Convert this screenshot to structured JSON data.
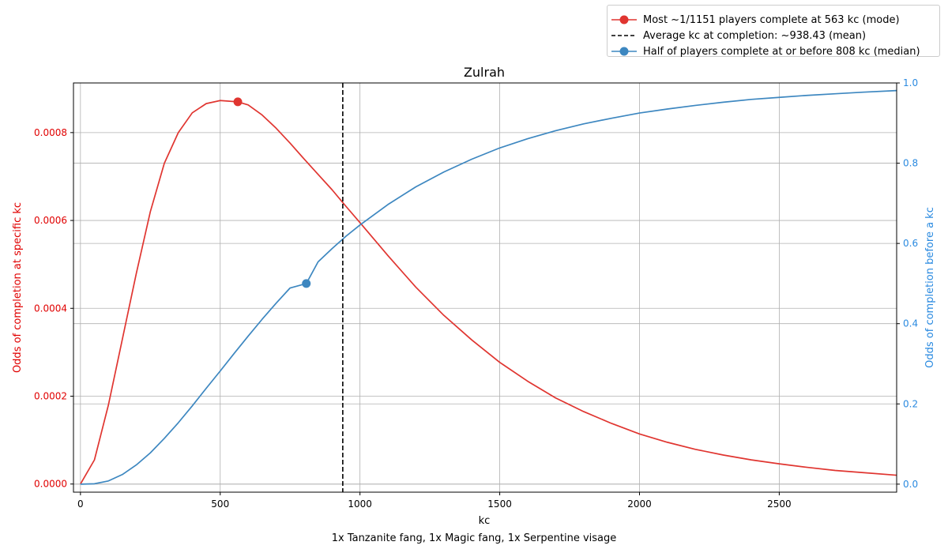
{
  "chart_data": {
    "type": "line",
    "title": "Zulrah",
    "xlabel": "kc",
    "caption": "1x Tanzanite fang, 1x Magic fang, 1x Serpentine visage",
    "x_range": [
      -25,
      2920
    ],
    "x_ticks": [
      0,
      500,
      1000,
      1500,
      2000,
      2500
    ],
    "grid": true,
    "legend_placement": "upper right, above plot",
    "y_left": {
      "label": "Odds of completion at specific kc",
      "range": [
        -1.85e-05,
        0.000913
      ],
      "ticks": [
        "0.0000",
        "0.0002",
        "0.0004",
        "0.0006",
        "0.0008"
      ],
      "tick_values": [
        0,
        0.0002,
        0.0004,
        0.0006,
        0.0008
      ],
      "color": "#e00000"
    },
    "y_right": {
      "label": "Odds of completion before a kc",
      "range": [
        -0.02,
        1.0
      ],
      "ticks": [
        "0.0",
        "0.2",
        "0.4",
        "0.6",
        "0.8",
        "1.0"
      ],
      "tick_values": [
        0,
        0.2,
        0.4,
        0.6,
        0.8,
        1.0
      ],
      "color": "#2a8ae0"
    },
    "series": [
      {
        "name": "Most ~1/1151 players complete at 563 kc (mode)",
        "axis": "left",
        "color": "#e03530",
        "x": [
          0,
          50,
          100,
          150,
          200,
          250,
          300,
          350,
          400,
          450,
          500,
          563,
          600,
          650,
          700,
          750,
          800,
          850,
          900,
          950,
          1000,
          1100,
          1200,
          1300,
          1400,
          1500,
          1600,
          1700,
          1800,
          1900,
          2000,
          2100,
          2200,
          2300,
          2400,
          2500,
          2600,
          2700,
          2800,
          2920
        ],
        "y": [
          0,
          5.5e-05,
          0.00018,
          0.00033,
          0.00048,
          0.00062,
          0.00073,
          0.0008,
          0.000845,
          0.000866,
          0.000873,
          0.00087,
          0.000863,
          0.00084,
          0.00081,
          0.000776,
          0.00074,
          0.000705,
          0.00067,
          0.000632,
          0.000595,
          0.00052,
          0.000448,
          0.000384,
          0.000328,
          0.000277,
          0.000234,
          0.000196,
          0.000165,
          0.000138,
          0.000114,
          9.5e-05,
          7.9e-05,
          6.6e-05,
          5.5e-05,
          4.6e-05,
          3.8e-05,
          3.1e-05,
          2.6e-05,
          2e-05
        ],
        "marker": {
          "x": 563,
          "y": 0.00087
        }
      },
      {
        "name": "Half of players complete at or before 808 kc (median)",
        "axis": "right",
        "color": "#3d87c0",
        "x": [
          0,
          50,
          100,
          150,
          200,
          250,
          300,
          350,
          400,
          450,
          500,
          550,
          600,
          650,
          700,
          750,
          808,
          850,
          900,
          950,
          1000,
          1100,
          1200,
          1300,
          1400,
          1500,
          1600,
          1700,
          1800,
          1900,
          2000,
          2100,
          2200,
          2300,
          2400,
          2500,
          2600,
          2700,
          2800,
          2920
        ],
        "y": [
          0,
          0.001,
          0.008,
          0.024,
          0.048,
          0.078,
          0.114,
          0.153,
          0.195,
          0.239,
          0.282,
          0.326,
          0.369,
          0.411,
          0.451,
          0.489,
          0.5,
          0.554,
          0.587,
          0.618,
          0.646,
          0.697,
          0.741,
          0.778,
          0.81,
          0.838,
          0.861,
          0.881,
          0.898,
          0.912,
          0.925,
          0.935,
          0.944,
          0.952,
          0.959,
          0.964,
          0.969,
          0.973,
          0.977,
          0.981
        ],
        "marker": {
          "x": 808,
          "y": 0.5
        }
      }
    ],
    "vlines": [
      {
        "name": "Average kc at completion: ~938.43 (mean)",
        "x": 938.43,
        "color": "#000000",
        "style": "dashed"
      }
    ]
  }
}
